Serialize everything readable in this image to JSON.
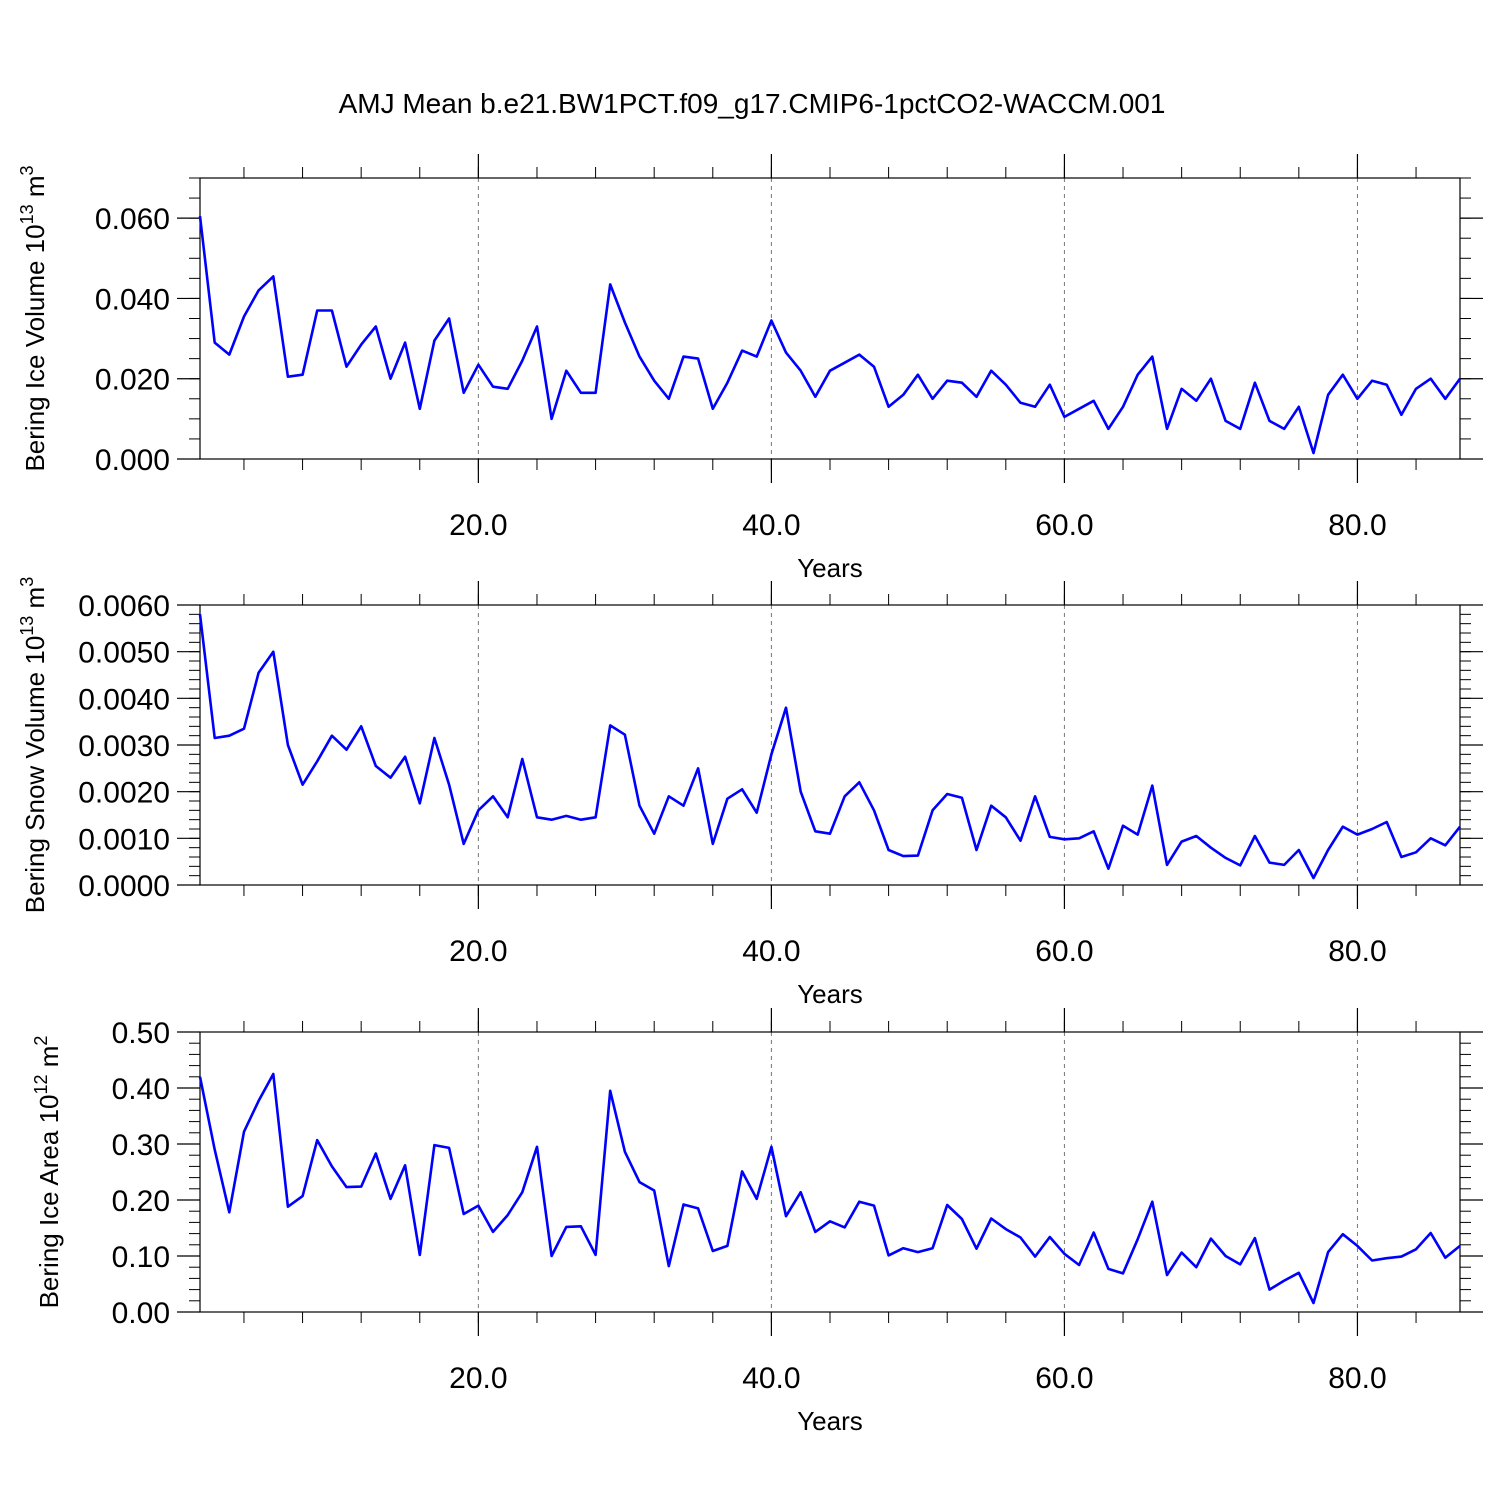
{
  "title": "AMJ Mean b.e21.BW1PCT.f09_g17.CMIP6-1pctCO2-WACCM.001",
  "line_color": "#0000ff",
  "chart_data": [
    {
      "type": "line",
      "ylabel_main": "Bering Ice Volume 10",
      "ylabel_exp": "13",
      "ylabel_unit": " m",
      "ylabel_unit_exp": "3",
      "xlabel": "Years",
      "xlim": [
        1,
        87
      ],
      "ylim": [
        0.0,
        0.07
      ],
      "xticks": [
        20,
        40,
        60,
        80
      ],
      "xtick_labels": [
        "20.0",
        "40.0",
        "60.0",
        "80.0"
      ],
      "yticks": [
        0.0,
        0.02,
        0.04,
        0.06
      ],
      "ytick_labels": [
        "0.000",
        "0.020",
        "0.040",
        "0.060"
      ],
      "y_minor_step": 0.005,
      "x_minor_step": 4,
      "x_grid": "dashed at major x ticks",
      "series": [
        {
          "values": [
            0.0605,
            0.029,
            0.026,
            0.0355,
            0.042,
            0.0455,
            0.0205,
            0.021,
            0.037,
            0.037,
            0.023,
            0.0285,
            0.033,
            0.02,
            0.029,
            0.0125,
            0.0295,
            0.035,
            0.0165,
            0.0235,
            0.018,
            0.0175,
            0.0245,
            0.033,
            0.01,
            0.022,
            0.0165,
            0.0165,
            0.0435,
            0.034,
            0.0255,
            0.0195,
            0.015,
            0.0255,
            0.025,
            0.0125,
            0.019,
            0.027,
            0.0255,
            0.0345,
            0.0265,
            0.022,
            0.0155,
            0.022,
            0.024,
            0.026,
            0.023,
            0.013,
            0.016,
            0.021,
            0.015,
            0.0195,
            0.019,
            0.0155,
            0.022,
            0.0185,
            0.014,
            0.013,
            0.0185,
            0.0105,
            0.0125,
            0.0145,
            0.0075,
            0.013,
            0.021,
            0.0255,
            0.0075,
            0.0175,
            0.0145,
            0.02,
            0.0095,
            0.0075,
            0.019,
            0.0095,
            0.0075,
            0.013,
            0.0015,
            0.016,
            0.021,
            0.015,
            0.0195,
            0.0185,
            0.011,
            0.0175,
            0.02,
            0.015,
            0.02
          ]
        }
      ]
    },
    {
      "type": "line",
      "ylabel_main": "Bering Snow Volume 10",
      "ylabel_exp": "13",
      "ylabel_unit": " m",
      "ylabel_unit_exp": "3",
      "xlabel": "Years",
      "xlim": [
        1,
        87
      ],
      "ylim": [
        0.0,
        0.006
      ],
      "xticks": [
        20,
        40,
        60,
        80
      ],
      "xtick_labels": [
        "20.0",
        "40.0",
        "60.0",
        "80.0"
      ],
      "yticks": [
        0.0,
        0.001,
        0.002,
        0.003,
        0.004,
        0.005,
        0.006
      ],
      "ytick_labels": [
        "0.0000",
        "0.0010",
        "0.0020",
        "0.0030",
        "0.0040",
        "0.0050",
        "0.0060"
      ],
      "y_minor_step": 0.0002,
      "x_minor_step": 4,
      "x_grid": "dashed at major x ticks",
      "series": [
        {
          "values": [
            0.0058,
            0.00315,
            0.0032,
            0.00335,
            0.00455,
            0.005,
            0.003,
            0.00215,
            0.00265,
            0.0032,
            0.0029,
            0.0034,
            0.00255,
            0.0023,
            0.00275,
            0.00175,
            0.00315,
            0.00215,
            0.00088,
            0.0016,
            0.0019,
            0.00145,
            0.0027,
            0.00145,
            0.0014,
            0.00148,
            0.0014,
            0.00145,
            0.00342,
            0.00322,
            0.0017,
            0.0011,
            0.0019,
            0.0017,
            0.0025,
            0.00088,
            0.00185,
            0.00205,
            0.00155,
            0.0028,
            0.0038,
            0.002,
            0.00115,
            0.0011,
            0.0019,
            0.0022,
            0.0016,
            0.00075,
            0.00062,
            0.00063,
            0.0016,
            0.00195,
            0.00187,
            0.00075,
            0.0017,
            0.00145,
            0.00095,
            0.0019,
            0.00103,
            0.00098,
            0.001,
            0.00115,
            0.00035,
            0.00127,
            0.00108,
            0.00213,
            0.00043,
            0.00093,
            0.00105,
            0.0008,
            0.00058,
            0.00042,
            0.00105,
            0.00048,
            0.00043,
            0.00075,
            0.00015,
            0.00075,
            0.00125,
            0.00108,
            0.0012,
            0.00135,
            0.0006,
            0.0007,
            0.001,
            0.00085,
            0.00125
          ]
        }
      ]
    },
    {
      "type": "line",
      "ylabel_main": "Bering Ice Area 10",
      "ylabel_exp": "12",
      "ylabel_unit": " m",
      "ylabel_unit_exp": "2",
      "xlabel": "Years",
      "xlim": [
        1,
        87
      ],
      "ylim": [
        0.0,
        0.5
      ],
      "xticks": [
        20,
        40,
        60,
        80
      ],
      "xtick_labels": [
        "20.0",
        "40.0",
        "60.0",
        "80.0"
      ],
      "yticks": [
        0.0,
        0.1,
        0.2,
        0.3,
        0.4,
        0.5
      ],
      "ytick_labels": [
        "0.00",
        "0.10",
        "0.20",
        "0.30",
        "0.40",
        "0.50"
      ],
      "y_minor_step": 0.02,
      "x_minor_step": 4,
      "x_grid": "dashed at major x ticks",
      "series": [
        {
          "values": [
            0.42,
            0.29,
            0.178,
            0.322,
            0.377,
            0.425,
            0.188,
            0.207,
            0.307,
            0.26,
            0.223,
            0.224,
            0.283,
            0.202,
            0.262,
            0.102,
            0.298,
            0.293,
            0.175,
            0.19,
            0.143,
            0.173,
            0.214,
            0.295,
            0.1,
            0.152,
            0.153,
            0.102,
            0.395,
            0.286,
            0.232,
            0.217,
            0.082,
            0.192,
            0.185,
            0.109,
            0.118,
            0.251,
            0.202,
            0.295,
            0.171,
            0.214,
            0.143,
            0.162,
            0.151,
            0.197,
            0.19,
            0.101,
            0.114,
            0.107,
            0.114,
            0.191,
            0.166,
            0.113,
            0.167,
            0.148,
            0.133,
            0.099,
            0.134,
            0.104,
            0.084,
            0.142,
            0.077,
            0.069,
            0.13,
            0.197,
            0.066,
            0.106,
            0.08,
            0.131,
            0.1,
            0.085,
            0.132,
            0.04,
            0.056,
            0.07,
            0.016,
            0.107,
            0.139,
            0.118,
            0.092,
            0.096,
            0.099,
            0.112,
            0.141,
            0.097,
            0.118
          ]
        }
      ]
    }
  ]
}
